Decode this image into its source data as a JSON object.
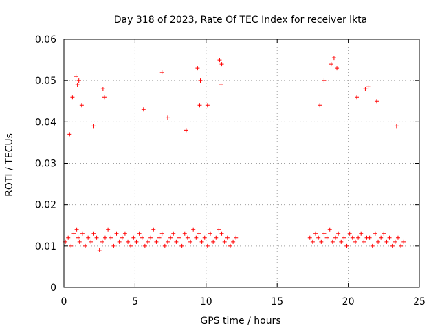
{
  "chart_data": {
    "type": "scatter",
    "title": "Day 318 of 2023, Rate Of TEC Index for receiver lkta",
    "xlabel": "GPS time / hours",
    "ylabel": "ROTI / TECUs",
    "xlim": [
      0,
      25
    ],
    "ylim": [
      0,
      0.06
    ],
    "xticks": [
      0,
      5,
      10,
      15,
      20,
      25
    ],
    "xtick_labels": [
      "0",
      "5",
      "10",
      "15",
      "20",
      "25"
    ],
    "yticks": [
      0,
      0.01,
      0.02,
      0.03,
      0.04,
      0.05,
      0.06
    ],
    "ytick_labels": [
      "0",
      "0.01",
      "0.02",
      "0.03",
      "0.04",
      "0.05",
      "0.06"
    ],
    "grid": true,
    "marker": "+",
    "series": [
      {
        "name": "ROTI",
        "color": "#ff0000",
        "x": [
          0.1,
          0.3,
          0.5,
          0.7,
          0.9,
          1.0,
          1.1,
          1.3,
          1.5,
          1.7,
          1.9,
          2.1,
          2.3,
          2.5,
          2.7,
          2.9,
          3.1,
          3.3,
          3.5,
          3.7,
          3.9,
          4.1,
          4.3,
          4.5,
          4.7,
          4.9,
          5.1,
          5.3,
          5.5,
          5.7,
          5.9,
          6.1,
          6.3,
          6.5,
          6.7,
          6.9,
          7.1,
          7.3,
          7.5,
          7.7,
          7.9,
          8.1,
          8.3,
          8.5,
          8.7,
          8.9,
          9.1,
          9.3,
          9.5,
          9.7,
          9.9,
          10.1,
          10.3,
          10.5,
          10.7,
          10.9,
          11.1,
          11.3,
          11.5,
          11.7,
          11.9,
          12.1,
          0.85,
          0.95,
          1.05,
          2.75,
          2.85,
          6.9,
          9.4,
          9.6,
          10.95,
          11.1,
          11.05,
          10.1,
          0.6,
          0.4,
          1.25,
          2.1,
          5.6,
          7.3,
          8.6,
          9.55,
          17.3,
          17.5,
          17.7,
          17.9,
          18.1,
          18.3,
          18.5,
          18.7,
          18.9,
          19.1,
          19.3,
          19.5,
          19.7,
          19.9,
          20.1,
          20.3,
          20.5,
          20.7,
          20.9,
          21.1,
          21.3,
          21.5,
          21.7,
          21.9,
          22.1,
          22.3,
          22.5,
          22.7,
          22.9,
          23.1,
          23.3,
          23.5,
          23.7,
          23.9,
          19.0,
          18.8,
          18.3,
          19.2,
          21.2,
          21.4,
          20.6,
          18.0,
          23.4,
          22.0
        ],
        "y": [
          0.011,
          0.012,
          0.01,
          0.013,
          0.014,
          0.012,
          0.011,
          0.013,
          0.01,
          0.012,
          0.011,
          0.013,
          0.012,
          0.009,
          0.011,
          0.012,
          0.014,
          0.012,
          0.01,
          0.013,
          0.011,
          0.012,
          0.013,
          0.011,
          0.01,
          0.012,
          0.011,
          0.013,
          0.012,
          0.01,
          0.011,
          0.012,
          0.014,
          0.011,
          0.012,
          0.013,
          0.01,
          0.011,
          0.012,
          0.013,
          0.011,
          0.012,
          0.01,
          0.013,
          0.012,
          0.011,
          0.014,
          0.012,
          0.013,
          0.011,
          0.012,
          0.01,
          0.013,
          0.011,
          0.012,
          0.014,
          0.013,
          0.011,
          0.012,
          0.01,
          0.011,
          0.012,
          0.051,
          0.049,
          0.05,
          0.048,
          0.046,
          0.052,
          0.053,
          0.05,
          0.055,
          0.054,
          0.049,
          0.044,
          0.046,
          0.037,
          0.044,
          0.039,
          0.043,
          0.041,
          0.038,
          0.044,
          0.012,
          0.011,
          0.013,
          0.012,
          0.011,
          0.013,
          0.012,
          0.014,
          0.011,
          0.012,
          0.013,
          0.011,
          0.012,
          0.01,
          0.013,
          0.012,
          0.011,
          0.012,
          0.013,
          0.011,
          0.012,
          0.012,
          0.01,
          0.013,
          0.011,
          0.012,
          0.013,
          0.011,
          0.012,
          0.01,
          0.011,
          0.012,
          0.01,
          0.011,
          0.0555,
          0.054,
          0.05,
          0.053,
          0.048,
          0.0485,
          0.046,
          0.044,
          0.039,
          0.045
        ]
      }
    ]
  }
}
